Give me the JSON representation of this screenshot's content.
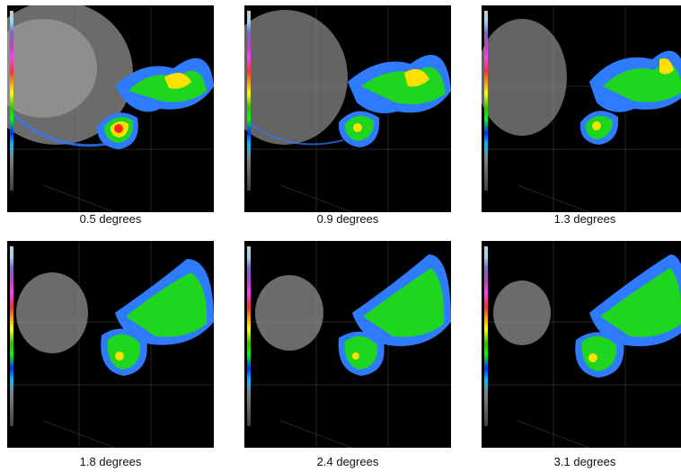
{
  "panels": [
    {
      "caption": "0.5 degrees"
    },
    {
      "caption": "0.9 degrees"
    },
    {
      "caption": "1.3 degrees"
    },
    {
      "caption": "1.8 degrees"
    },
    {
      "caption": "2.4 degrees"
    },
    {
      "caption": "3.1 degrees"
    }
  ],
  "colors": {
    "background": "#000000",
    "clutter": "#9a9a9a",
    "light_echo": "#2f7bff",
    "moderate_echo": "#1ed61e",
    "heavy_echo": "#ffe000",
    "intense_echo": "#ff2a1a",
    "county_lines": "#3a3a3a"
  }
}
